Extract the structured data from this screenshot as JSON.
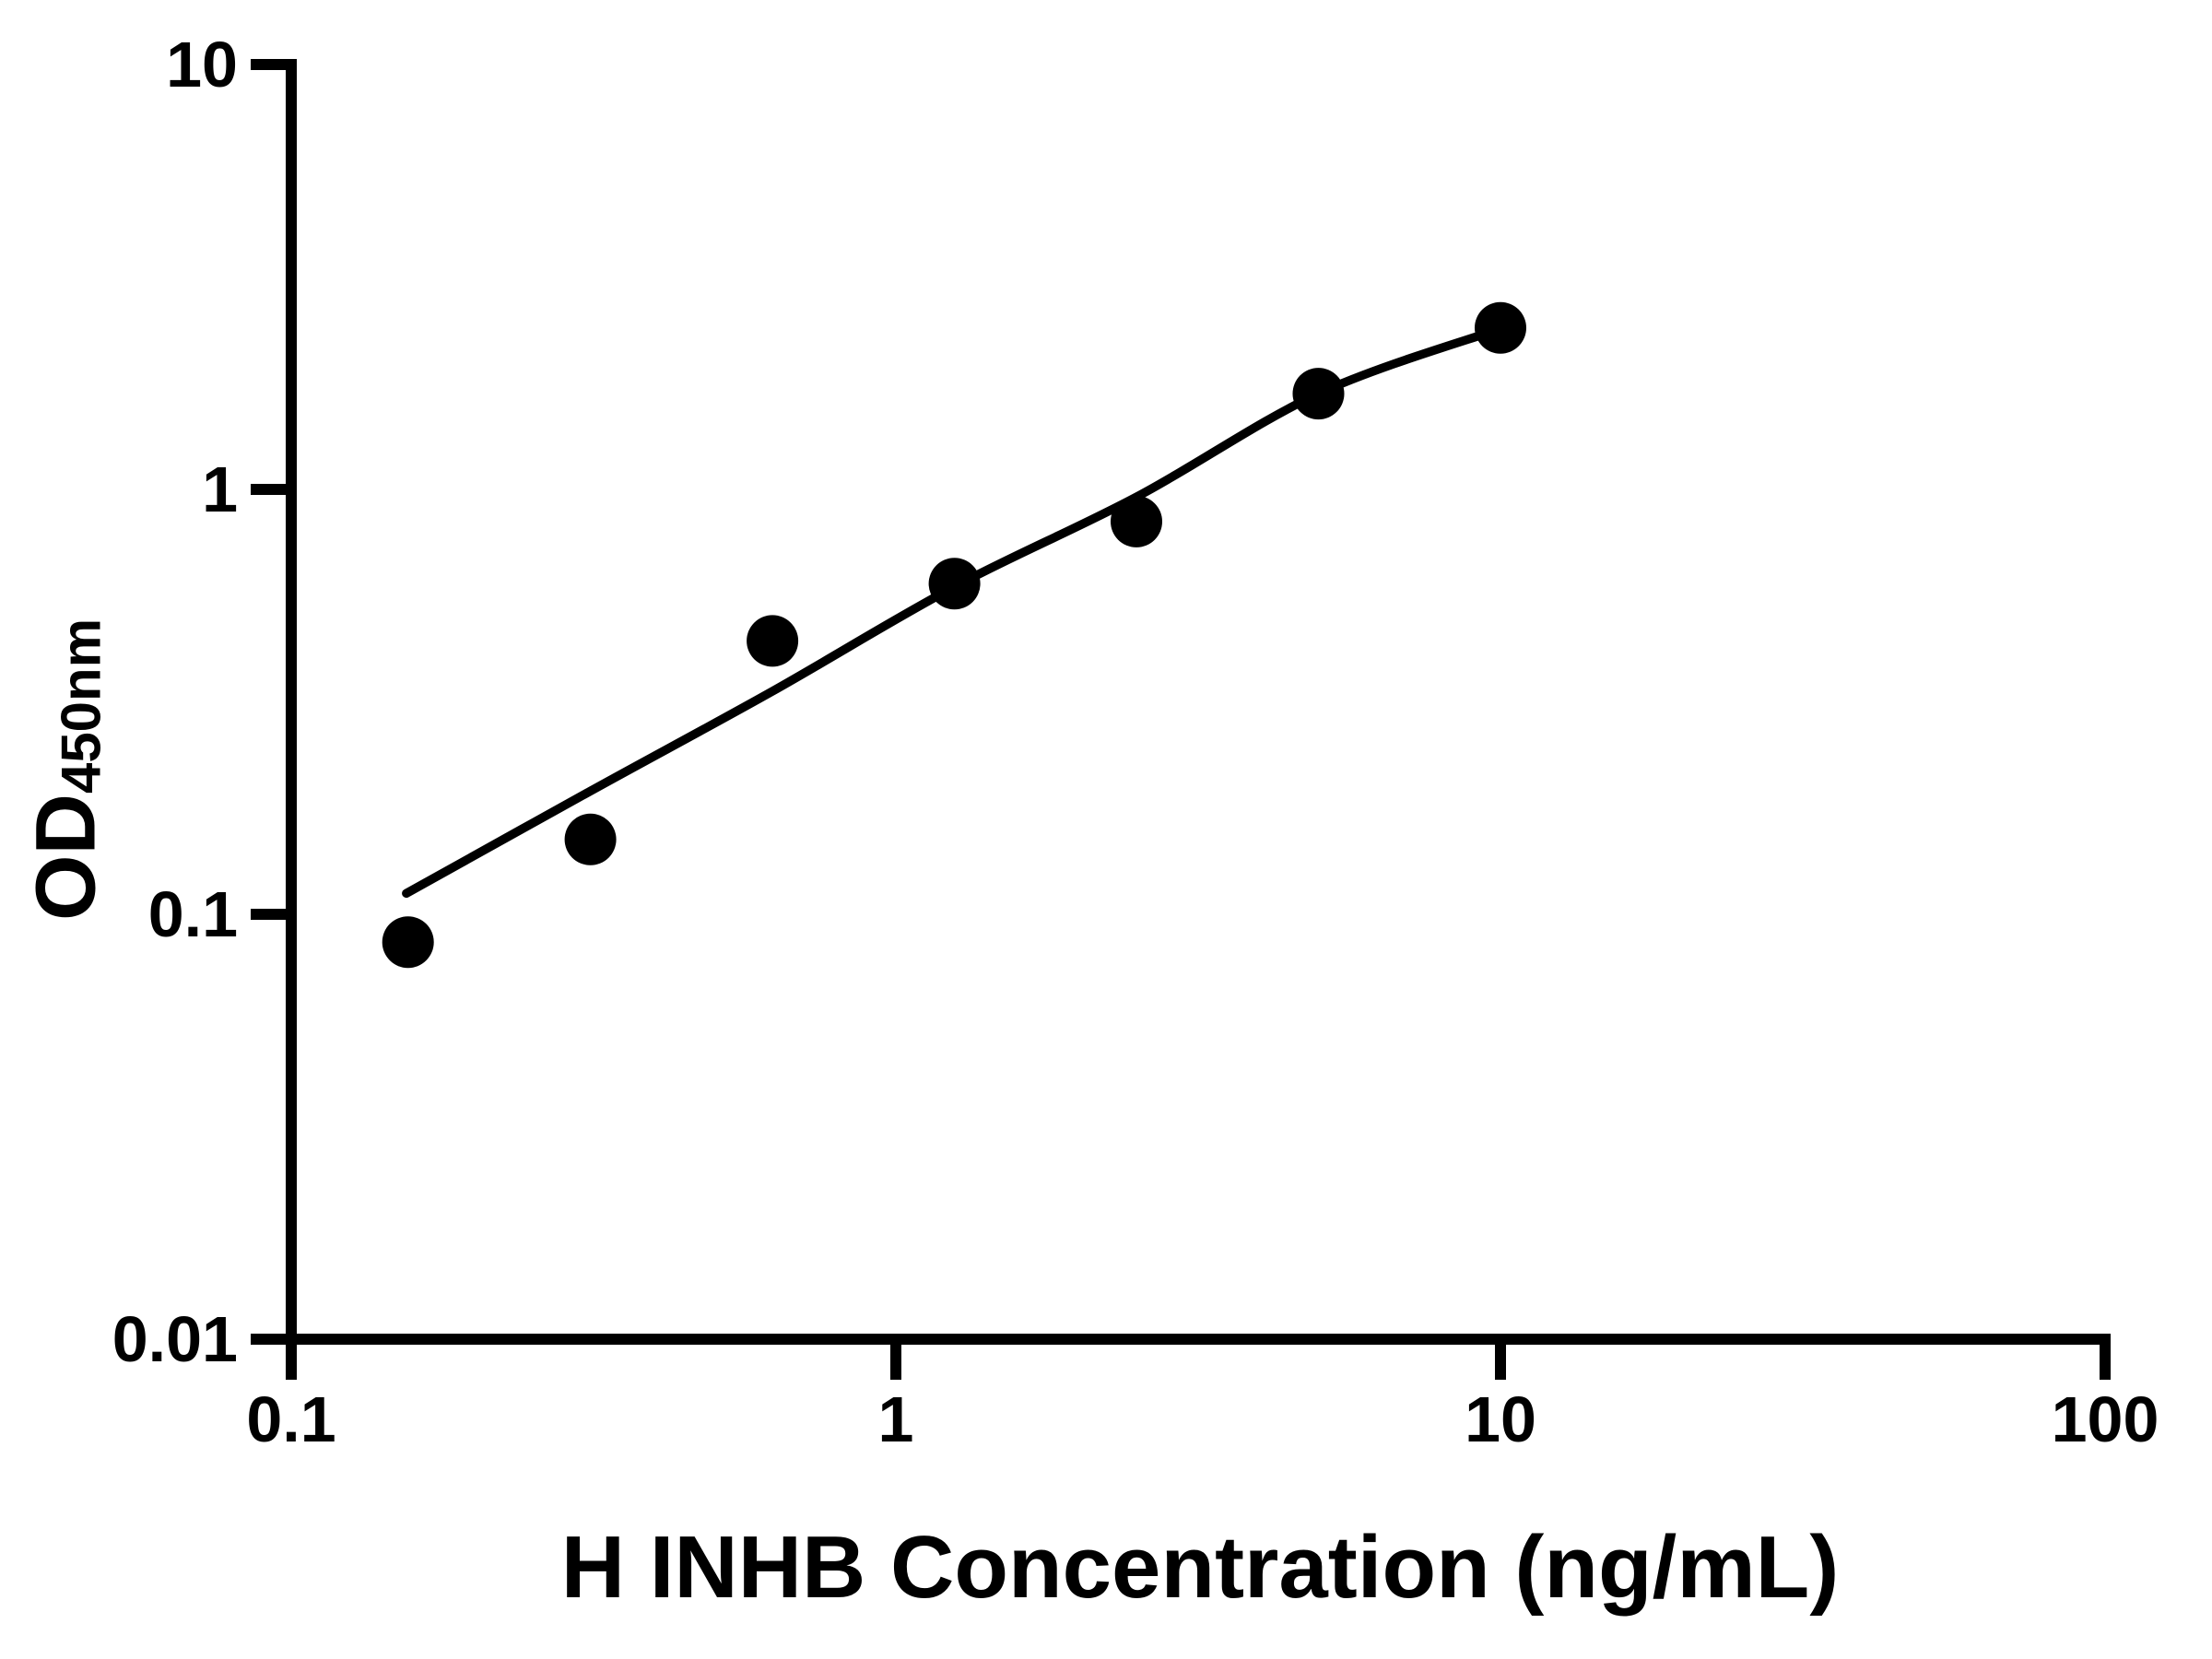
{
  "figure": {
    "background": "#ffffff",
    "ink_color": "#000000",
    "x_axis_title": "H INHB Concentration (ng/mL)",
    "y_axis_title_main": "OD",
    "y_axis_title_sub": "450nm",
    "x_tick_labels": [
      "0.1",
      "1",
      "10",
      "100"
    ],
    "y_tick_labels": [
      "10",
      "1",
      "0.1",
      "0.01"
    ]
  },
  "chart_data": {
    "type": "scatter",
    "title": "",
    "xlabel": "H INHB Concentration (ng/mL)",
    "ylabel": "OD450nm",
    "x_scale": "log",
    "y_scale": "log",
    "xlim": [
      0.1,
      100
    ],
    "ylim": [
      0.01,
      10
    ],
    "x_ticks": [
      0.1,
      1,
      10,
      100
    ],
    "y_ticks": [
      10,
      1,
      0.1,
      0.01
    ],
    "grid": false,
    "legend": "none",
    "marker_color": "#000000",
    "line_color": "#000000",
    "series": [
      {
        "name": "standard-points",
        "type": "scatter",
        "marker": "circle",
        "x": [
          0.156,
          0.3125,
          0.625,
          1.25,
          2.5,
          5,
          10
        ],
        "y": [
          0.086,
          0.15,
          0.44,
          0.6,
          0.84,
          1.68,
          2.4
        ]
      },
      {
        "name": "fitted-curve",
        "type": "line",
        "x": [
          0.155,
          0.3125,
          0.625,
          1.25,
          2.5,
          5,
          10
        ],
        "y": [
          0.112,
          0.195,
          0.335,
          0.59,
          0.96,
          1.68,
          2.39
        ]
      }
    ]
  }
}
